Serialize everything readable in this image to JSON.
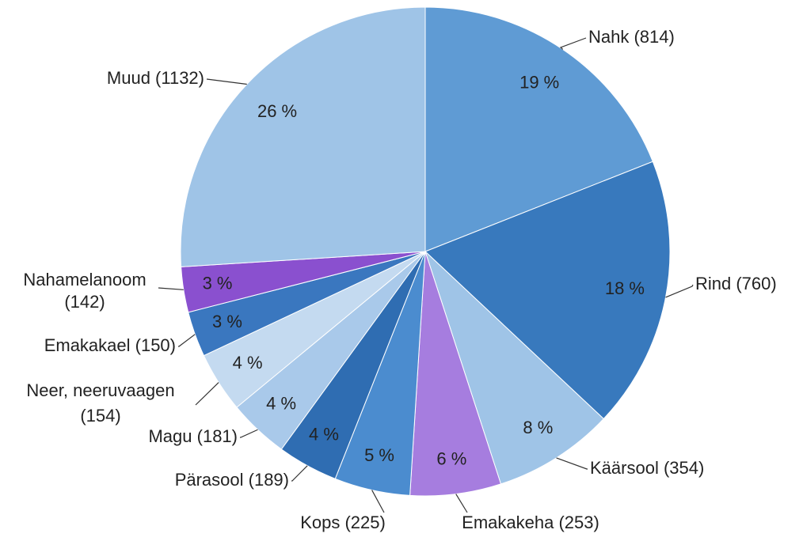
{
  "chart_data": {
    "type": "pie",
    "categories": [
      "Nahk (814)",
      "Rind (760)",
      "Käärsool (354)",
      "Emakakeha (253)",
      "Kops (225)",
      "Pärasool (189)",
      "Magu (181)",
      "Neer, neeruvaagen\n(154)",
      "Emakakael (150)",
      "Nahamelanoom\n(142)",
      "Muud (1132)"
    ],
    "values": [
      19,
      18,
      8,
      6,
      5,
      4,
      4,
      4,
      3,
      3,
      26
    ],
    "value_labels": [
      "19 %",
      "18 %",
      "8 %",
      "6 %",
      "5 %",
      "4 %",
      "4 %",
      "4 %",
      "3 %",
      "3 %",
      "26 %"
    ],
    "colors": [
      "#5f9bd4",
      "#3879bd",
      "#9fc4e7",
      "#a67ddf",
      "#4b8ccf",
      "#2f6db2",
      "#a9c9ea",
      "#c4daf0",
      "#3a77bf",
      "#8a50cf",
      "#9fc4e7"
    ]
  }
}
